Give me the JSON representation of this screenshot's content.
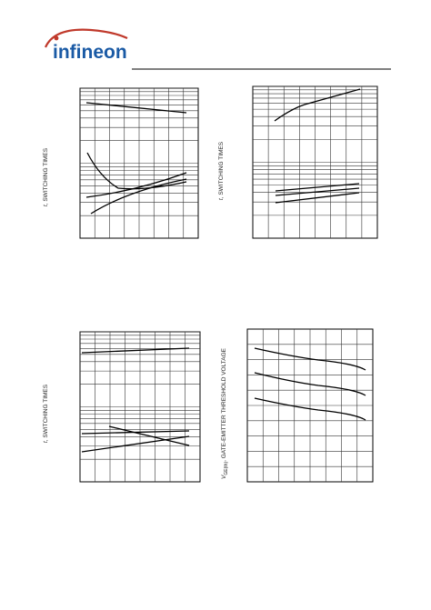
{
  "header": {
    "logo": "infineon"
  },
  "figures": [
    {
      "y_label_symbol": "t",
      "y_label_text": ", SWITCHING TIMES"
    },
    {
      "y_label_symbol": "t",
      "y_label_text": ", SWITCHING TIMES"
    },
    {
      "y_label_symbol": "t",
      "y_label_text": ", SWITCHING TIMES"
    },
    {
      "y_label_symbol": "V",
      "y_label_sub": "GE(th)",
      "y_label_text": ", GATE-EMITTER THRESHOLD VOLTAGE"
    }
  ]
}
